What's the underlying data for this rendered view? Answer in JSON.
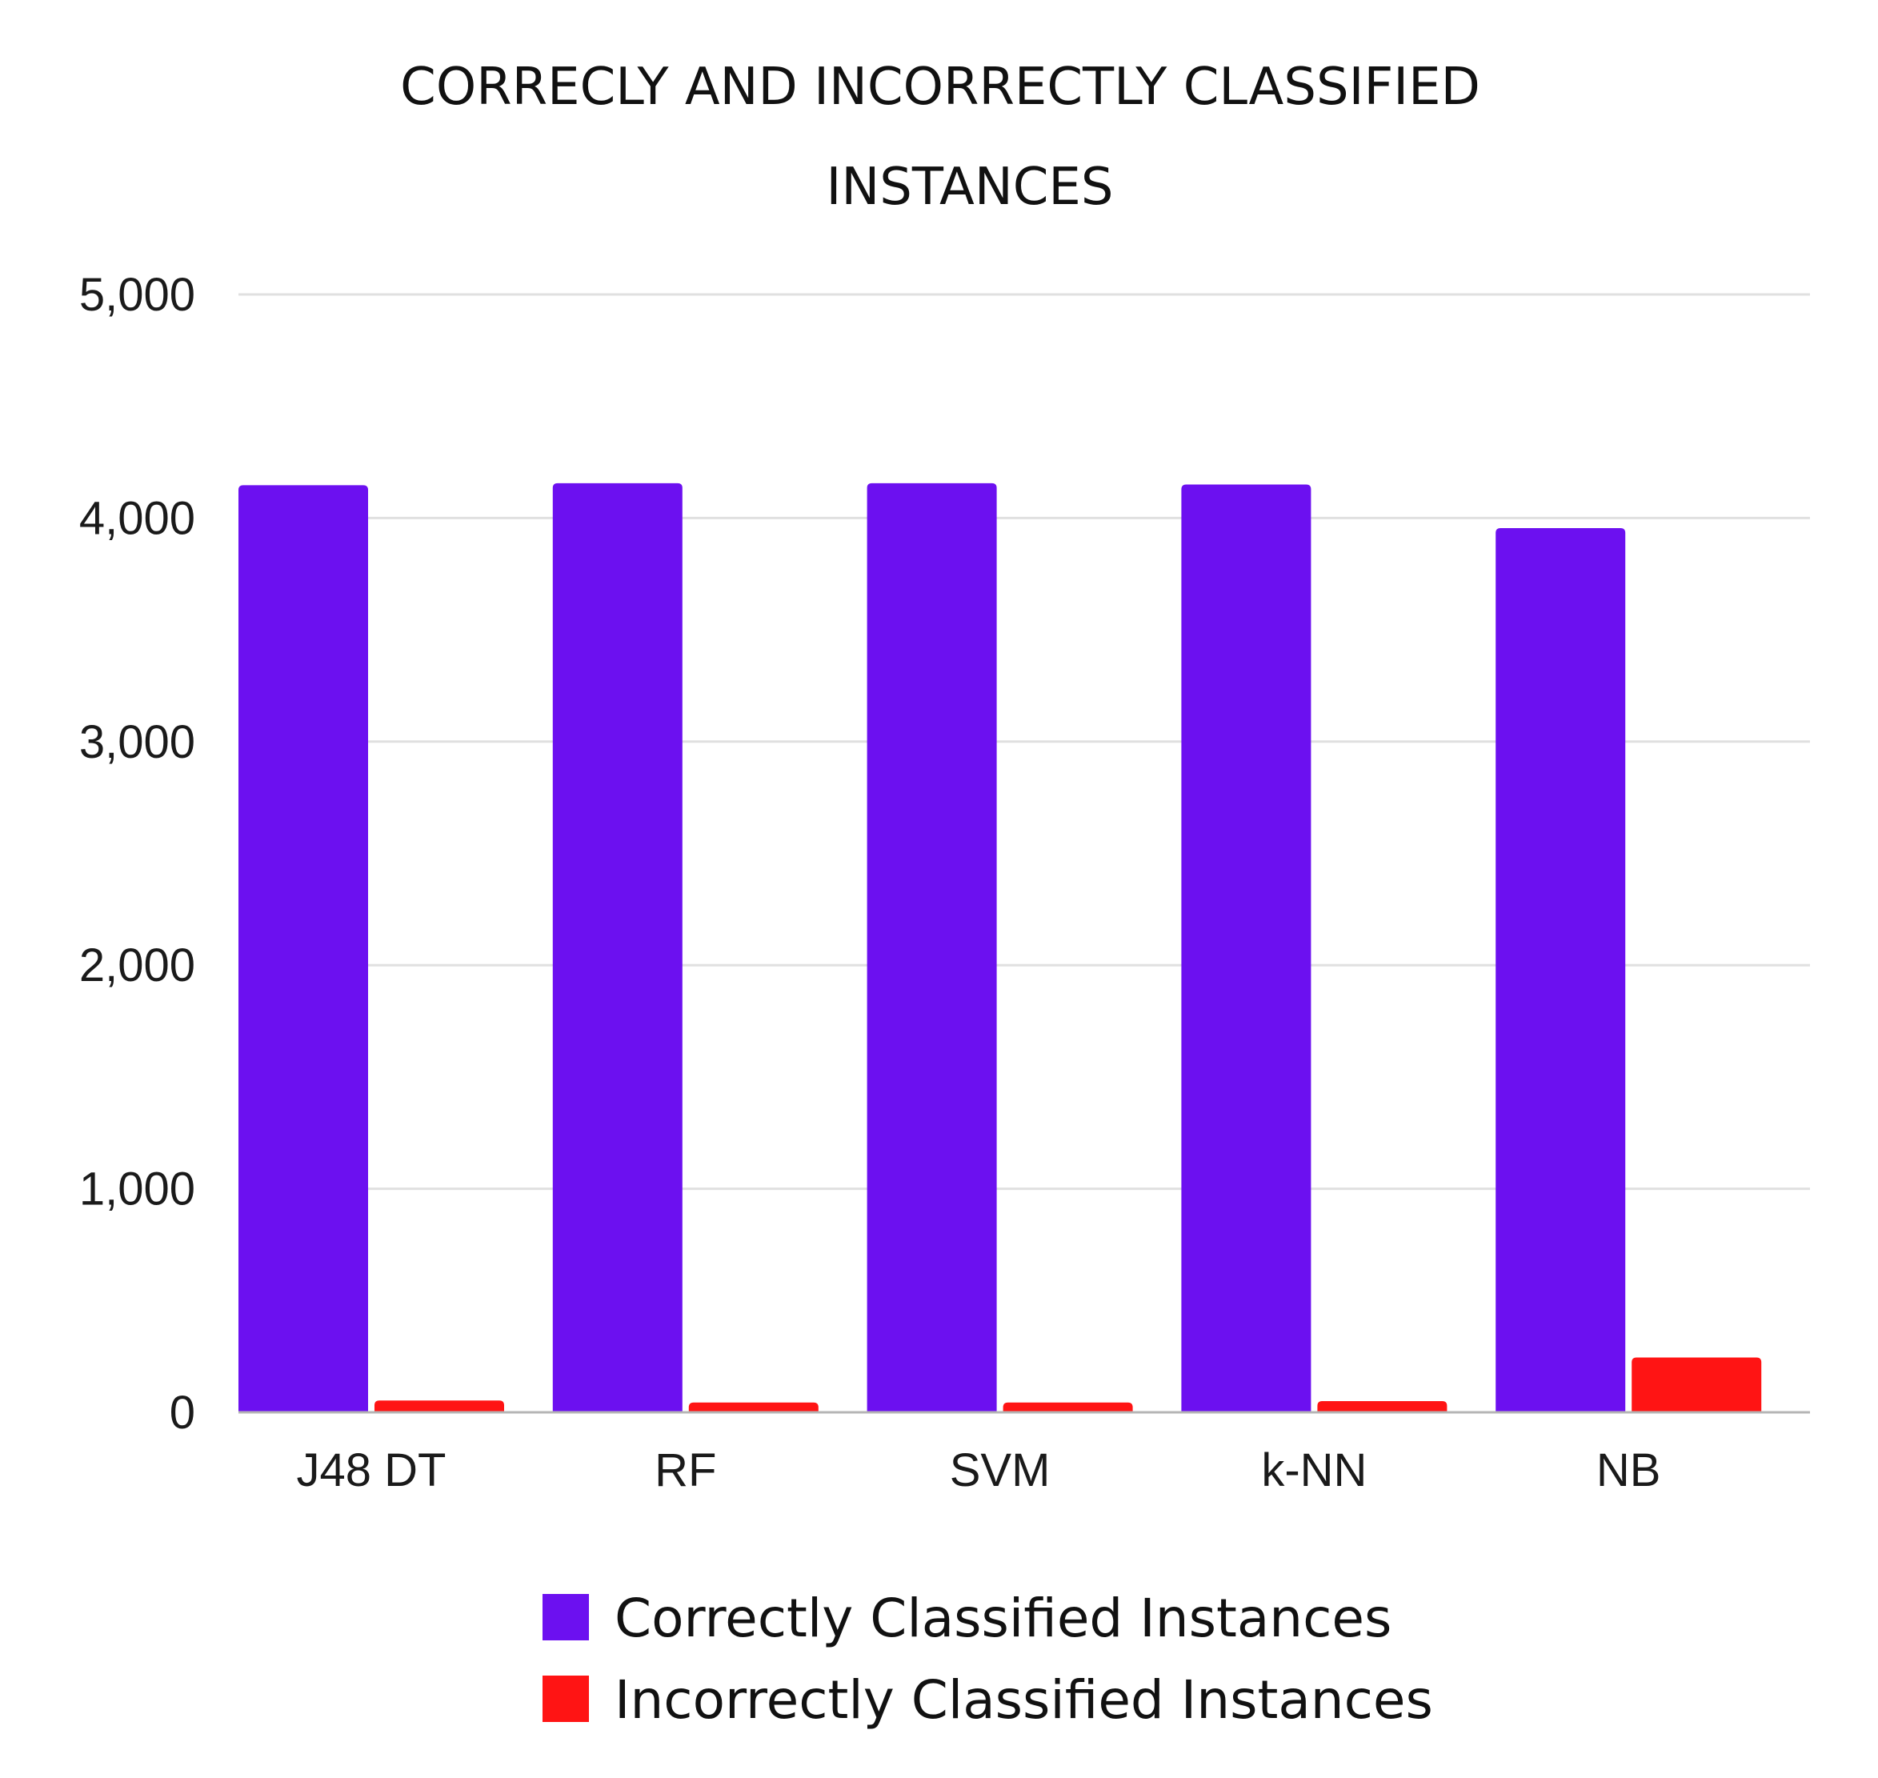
{
  "chart_data": {
    "type": "bar",
    "title": [
      "CORRECLY AND INCORRECTLY CLASSIFIED",
      "INSTANCES"
    ],
    "categories": [
      "J48 DT",
      "RF",
      "SVM",
      "k-NN",
      "NB"
    ],
    "series": [
      {
        "name": "Correctly Classified Instances",
        "color": "#6c10f0",
        "values": [
          4147,
          4156,
          4156,
          4150,
          3955
        ]
      },
      {
        "name": "Incorrectly Classified Instances",
        "color": "#ff1414",
        "values": [
          53,
          44,
          44,
          50,
          245
        ]
      }
    ],
    "ylim": [
      0,
      5000
    ],
    "yticks": [
      0,
      1000,
      2000,
      3000,
      4000,
      5000
    ],
    "ytick_labels": [
      "0",
      "1,000",
      "2,000",
      "3,000",
      "4,000",
      "5,000"
    ],
    "grid": true,
    "legend_position": "bottom"
  }
}
